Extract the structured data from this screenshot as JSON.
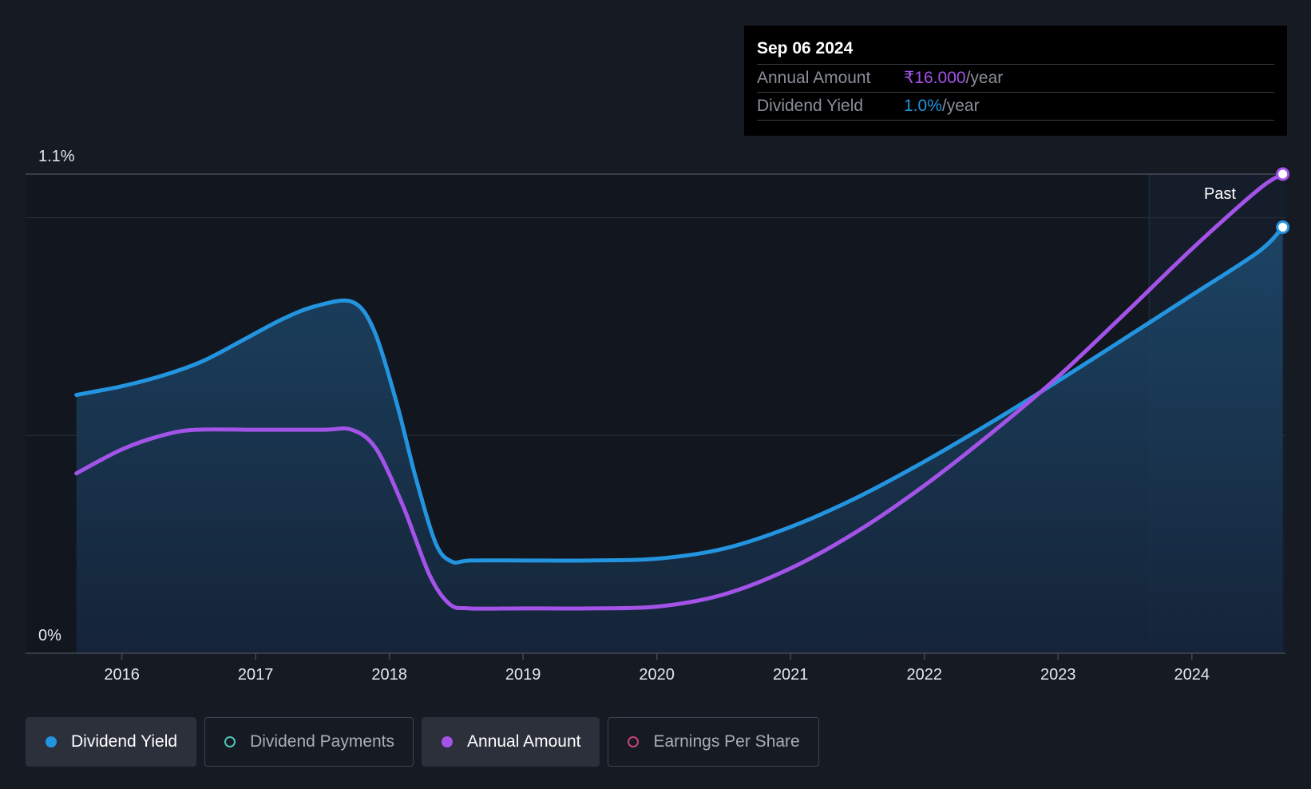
{
  "tooltip": {
    "date": "Sep 06 2024",
    "rows": [
      {
        "label": "Annual Amount",
        "value": "₹16.000",
        "unit": "/year"
      },
      {
        "label": "Dividend Yield",
        "value": "1.0%",
        "unit": "/year"
      }
    ]
  },
  "past_label": "Past",
  "legend": [
    {
      "label": "Dividend Yield",
      "active": true,
      "color": "#2394df",
      "filled": true
    },
    {
      "label": "Dividend Payments",
      "active": false,
      "color": "#4fc4b4",
      "filled": false
    },
    {
      "label": "Annual Amount",
      "active": true,
      "color": "#a353e8",
      "filled": true
    },
    {
      "label": "Earnings Per Share",
      "active": false,
      "color": "#c2457a",
      "filled": false
    }
  ],
  "chart_data": {
    "type": "line",
    "y_axis": {
      "top_label": "1.1%",
      "bottom_label": "0%",
      "ylim": [
        0,
        1.1
      ]
    },
    "x_ticks": [
      "2016",
      "2017",
      "2018",
      "2019",
      "2020",
      "2021",
      "2022",
      "2023",
      "2024"
    ],
    "xlim": [
      2015.28,
      2024.7
    ],
    "past_region_start": 2023.68,
    "colors": {
      "dividend_yield": "#2394df",
      "annual_amount": "#a353e8"
    },
    "series": [
      {
        "name": "Dividend Yield",
        "key": "dividend_yield",
        "color": "#2394df",
        "fill": true,
        "points": [
          [
            2015.66,
            0.593
          ],
          [
            2016.0,
            0.613
          ],
          [
            2016.3,
            0.637
          ],
          [
            2016.6,
            0.67
          ],
          [
            2016.9,
            0.718
          ],
          [
            2017.2,
            0.767
          ],
          [
            2017.45,
            0.797
          ],
          [
            2017.72,
            0.807
          ],
          [
            2017.88,
            0.745
          ],
          [
            2018.05,
            0.58
          ],
          [
            2018.2,
            0.4
          ],
          [
            2018.35,
            0.25
          ],
          [
            2018.47,
            0.21
          ],
          [
            2018.6,
            0.213
          ],
          [
            2019.0,
            0.213
          ],
          [
            2019.5,
            0.213
          ],
          [
            2020.0,
            0.217
          ],
          [
            2020.5,
            0.24
          ],
          [
            2021.0,
            0.29
          ],
          [
            2021.5,
            0.358
          ],
          [
            2022.0,
            0.44
          ],
          [
            2022.5,
            0.53
          ],
          [
            2023.0,
            0.625
          ],
          [
            2023.5,
            0.723
          ],
          [
            2024.0,
            0.822
          ],
          [
            2024.5,
            0.922
          ],
          [
            2024.68,
            0.978
          ]
        ]
      },
      {
        "name": "Annual Amount",
        "key": "annual_amount",
        "color": "#a353e8",
        "fill": false,
        "points": [
          [
            2015.66,
            0.413
          ],
          [
            2016.0,
            0.468
          ],
          [
            2016.3,
            0.5
          ],
          [
            2016.55,
            0.513
          ],
          [
            2017.0,
            0.513
          ],
          [
            2017.5,
            0.513
          ],
          [
            2017.72,
            0.513
          ],
          [
            2017.9,
            0.47
          ],
          [
            2018.1,
            0.34
          ],
          [
            2018.3,
            0.18
          ],
          [
            2018.45,
            0.113
          ],
          [
            2018.6,
            0.103
          ],
          [
            2019.0,
            0.103
          ],
          [
            2019.5,
            0.103
          ],
          [
            2020.0,
            0.107
          ],
          [
            2020.5,
            0.135
          ],
          [
            2021.0,
            0.195
          ],
          [
            2021.5,
            0.28
          ],
          [
            2022.0,
            0.385
          ],
          [
            2022.5,
            0.505
          ],
          [
            2023.0,
            0.635
          ],
          [
            2023.5,
            0.78
          ],
          [
            2024.0,
            0.928
          ],
          [
            2024.5,
            1.065
          ],
          [
            2024.68,
            1.1
          ]
        ]
      }
    ]
  }
}
